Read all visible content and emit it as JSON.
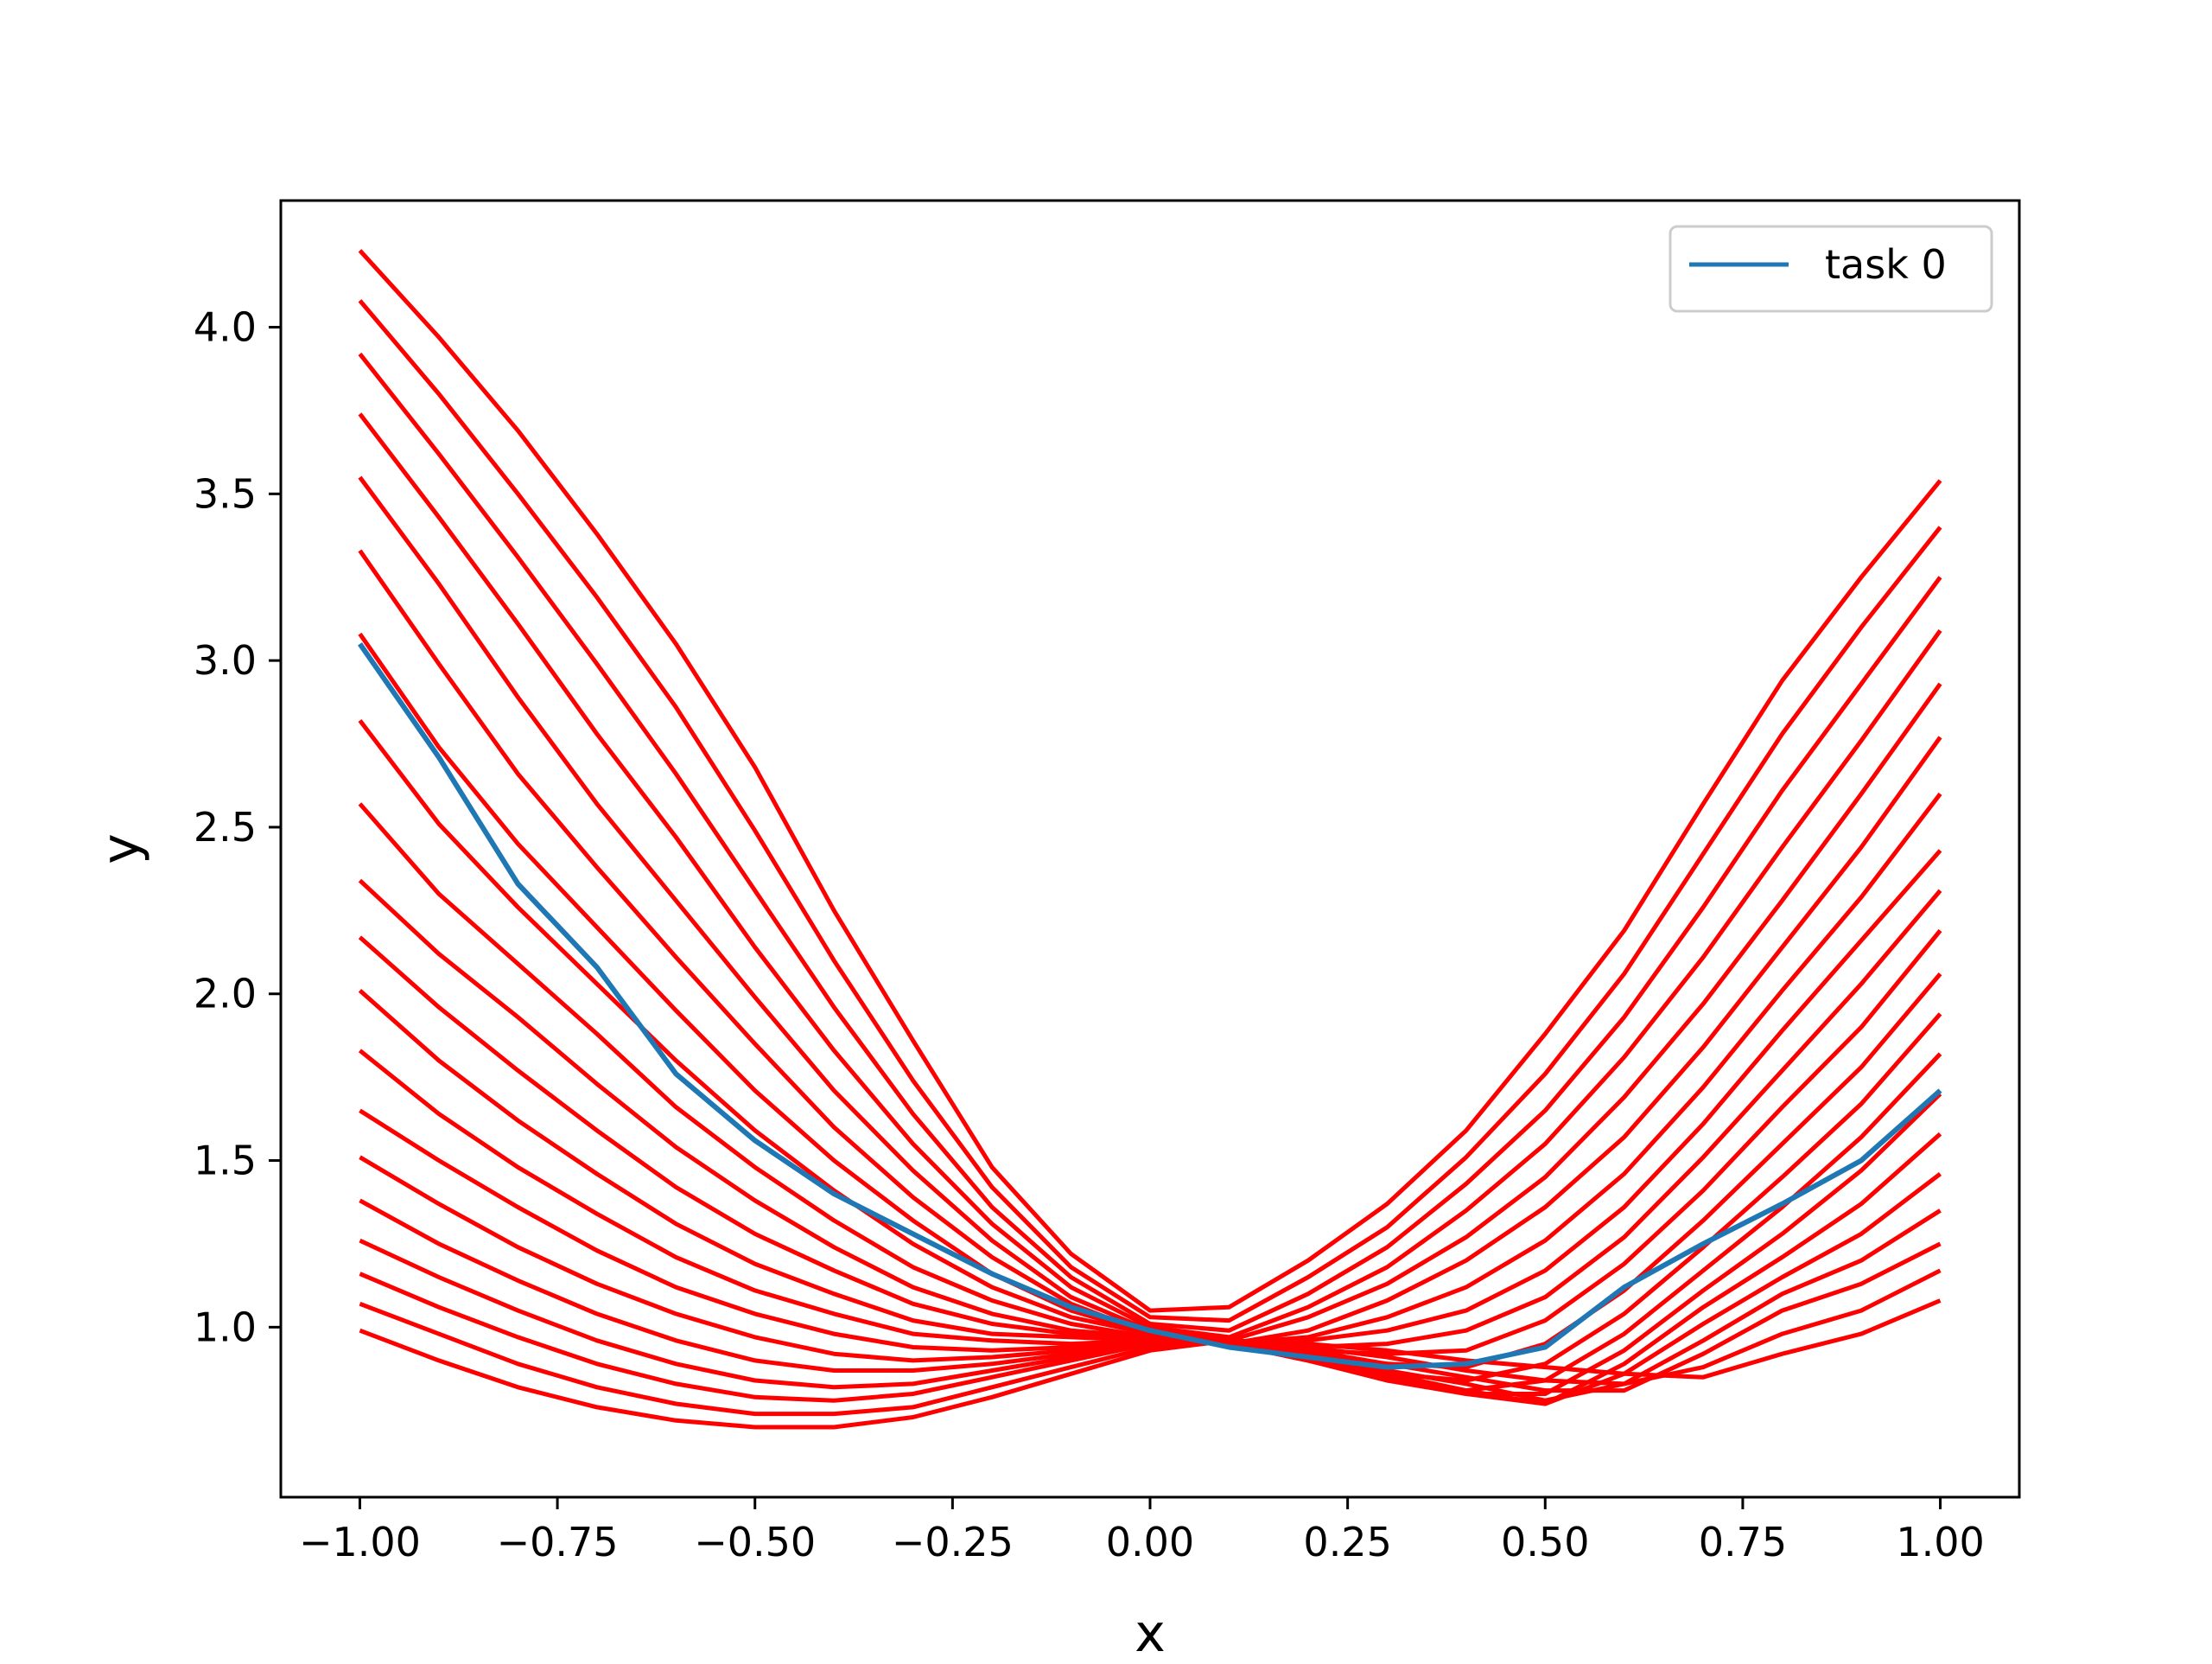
{
  "chart_data": {
    "type": "line",
    "title": "",
    "xlabel": "x",
    "ylabel": "y",
    "xlim": [
      -1.1,
      1.1
    ],
    "ylim": [
      0.49,
      4.38
    ],
    "xticks": [
      "−1.00",
      "−0.75",
      "−0.50",
      "−0.25",
      "0.00",
      "0.25",
      "0.50",
      "0.75",
      "1.00"
    ],
    "yticks": [
      "1.0",
      "1.5",
      "2.0",
      "2.5",
      "3.0",
      "3.5",
      "4.0"
    ],
    "grid": false,
    "legend": {
      "placement": "top-right",
      "entries": [
        "task 0"
      ]
    },
    "colors": {
      "highlight": "#1f77b4",
      "background_tasks": "#ff0000",
      "axes": "#000000"
    },
    "x": [
      -1.0,
      -0.9,
      -0.8,
      -0.7,
      -0.6,
      -0.5,
      -0.4,
      -0.3,
      -0.2,
      -0.1,
      0.0,
      0.1,
      0.2,
      0.3,
      0.4,
      0.5,
      0.6,
      0.7,
      0.8,
      0.9,
      1.0
    ],
    "series": [
      {
        "name": "task 0",
        "highlight": true,
        "values": [
          3.05,
          2.71,
          2.33,
          2.08,
          1.76,
          1.56,
          1.4,
          1.28,
          1.16,
          1.06,
          0.99,
          0.94,
          0.91,
          0.88,
          0.89,
          0.94,
          1.12,
          1.25,
          1.37,
          1.5,
          1.71
        ]
      },
      {
        "values": [
          0.99,
          0.9,
          0.82,
          0.76,
          0.72,
          0.7,
          0.7,
          0.73,
          0.79,
          0.86,
          0.93,
          0.96,
          0.95,
          0.93,
          0.9,
          0.88,
          0.86,
          0.85,
          0.92,
          0.98,
          1.08
        ]
      },
      {
        "values": [
          1.07,
          0.98,
          0.89,
          0.82,
          0.77,
          0.74,
          0.74,
          0.76,
          0.82,
          0.88,
          0.94,
          0.96,
          0.94,
          0.91,
          0.87,
          0.84,
          0.83,
          0.88,
          0.98,
          1.05,
          1.17
        ]
      },
      {
        "values": [
          1.16,
          1.06,
          0.97,
          0.89,
          0.83,
          0.79,
          0.78,
          0.8,
          0.85,
          0.9,
          0.95,
          0.96,
          0.93,
          0.89,
          0.85,
          0.81,
          0.81,
          0.92,
          1.05,
          1.13,
          1.25
        ]
      },
      {
        "values": [
          1.26,
          1.15,
          1.05,
          0.96,
          0.89,
          0.84,
          0.82,
          0.83,
          0.87,
          0.91,
          0.95,
          0.96,
          0.92,
          0.87,
          0.83,
          0.78,
          0.83,
          0.96,
          1.1,
          1.2,
          1.35
        ]
      },
      {
        "values": [
          1.38,
          1.25,
          1.14,
          1.04,
          0.96,
          0.9,
          0.87,
          0.87,
          0.89,
          0.92,
          0.96,
          0.96,
          0.91,
          0.86,
          0.81,
          0.77,
          0.86,
          1.01,
          1.15,
          1.28,
          1.46
        ]
      },
      {
        "values": [
          1.51,
          1.37,
          1.24,
          1.13,
          1.04,
          0.97,
          0.92,
          0.9,
          0.91,
          0.93,
          0.96,
          0.95,
          0.9,
          0.85,
          0.8,
          0.77,
          0.89,
          1.06,
          1.21,
          1.37,
          1.58
        ]
      },
      {
        "values": [
          1.65,
          1.5,
          1.36,
          1.23,
          1.12,
          1.04,
          0.98,
          0.94,
          0.93,
          0.94,
          0.96,
          0.95,
          0.9,
          0.84,
          0.8,
          0.8,
          0.93,
          1.11,
          1.28,
          1.47,
          1.7
        ]
      },
      {
        "values": [
          1.83,
          1.64,
          1.48,
          1.34,
          1.21,
          1.11,
          1.04,
          0.98,
          0.96,
          0.95,
          0.96,
          0.95,
          0.9,
          0.84,
          0.81,
          0.84,
          0.98,
          1.17,
          1.36,
          1.57,
          1.82
        ]
      },
      {
        "values": [
          2.01,
          1.8,
          1.62,
          1.46,
          1.31,
          1.19,
          1.1,
          1.02,
          0.98,
          0.97,
          0.96,
          0.95,
          0.91,
          0.86,
          0.84,
          0.89,
          1.04,
          1.24,
          1.45,
          1.67,
          1.94
        ]
      },
      {
        "values": [
          2.17,
          1.96,
          1.77,
          1.59,
          1.42,
          1.28,
          1.17,
          1.07,
          1.01,
          0.98,
          0.97,
          0.95,
          0.92,
          0.89,
          0.88,
          0.95,
          1.11,
          1.32,
          1.55,
          1.78,
          2.06
        ]
      },
      {
        "values": [
          2.34,
          2.12,
          1.93,
          1.73,
          1.54,
          1.38,
          1.24,
          1.12,
          1.04,
          0.99,
          0.97,
          0.95,
          0.93,
          0.92,
          0.93,
          1.02,
          1.19,
          1.41,
          1.66,
          1.9,
          2.19
        ]
      },
      {
        "values": [
          2.57,
          2.3,
          2.09,
          1.88,
          1.66,
          1.48,
          1.32,
          1.18,
          1.08,
          1.01,
          0.97,
          0.95,
          0.94,
          0.95,
          0.99,
          1.09,
          1.27,
          1.51,
          1.77,
          2.03,
          2.31
        ]
      },
      {
        "values": [
          2.82,
          2.51,
          2.26,
          2.03,
          1.8,
          1.59,
          1.41,
          1.25,
          1.12,
          1.03,
          0.98,
          0.95,
          0.96,
          0.99,
          1.05,
          1.17,
          1.36,
          1.61,
          1.89,
          2.16,
          2.43
        ]
      },
      {
        "values": [
          3.08,
          2.74,
          2.45,
          2.2,
          1.95,
          1.71,
          1.5,
          1.32,
          1.16,
          1.05,
          0.98,
          0.95,
          0.97,
          1.03,
          1.12,
          1.26,
          1.46,
          1.72,
          2.01,
          2.29,
          2.6
        ]
      },
      {
        "values": [
          3.33,
          2.99,
          2.66,
          2.38,
          2.11,
          1.85,
          1.6,
          1.39,
          1.21,
          1.07,
          0.98,
          0.95,
          0.99,
          1.08,
          1.2,
          1.36,
          1.57,
          1.84,
          2.14,
          2.44,
          2.77
        ]
      },
      {
        "values": [
          3.55,
          3.23,
          2.89,
          2.57,
          2.28,
          1.99,
          1.71,
          1.47,
          1.26,
          1.09,
          0.99,
          0.96,
          1.03,
          1.13,
          1.27,
          1.45,
          1.69,
          1.97,
          2.28,
          2.6,
          2.93
        ]
      },
      {
        "values": [
          3.74,
          3.43,
          3.11,
          2.78,
          2.47,
          2.14,
          1.83,
          1.55,
          1.31,
          1.12,
          1.0,
          0.97,
          1.06,
          1.18,
          1.35,
          1.55,
          1.81,
          2.11,
          2.44,
          2.76,
          3.09
        ]
      },
      {
        "values": [
          3.92,
          3.62,
          3.31,
          2.99,
          2.66,
          2.31,
          1.96,
          1.64,
          1.36,
          1.15,
          1.01,
          0.99,
          1.1,
          1.24,
          1.43,
          1.65,
          1.93,
          2.26,
          2.61,
          2.93,
          3.25
        ]
      },
      {
        "values": [
          4.08,
          3.8,
          3.5,
          3.19,
          2.86,
          2.49,
          2.1,
          1.74,
          1.42,
          1.18,
          1.03,
          1.02,
          1.15,
          1.3,
          1.51,
          1.76,
          2.06,
          2.42,
          2.78,
          3.1,
          3.4
        ]
      },
      {
        "values": [
          4.23,
          3.97,
          3.69,
          3.38,
          3.05,
          2.68,
          2.25,
          1.86,
          1.48,
          1.22,
          1.05,
          1.06,
          1.2,
          1.37,
          1.59,
          1.88,
          2.19,
          2.57,
          2.94,
          3.25,
          3.54
        ]
      }
    ]
  }
}
